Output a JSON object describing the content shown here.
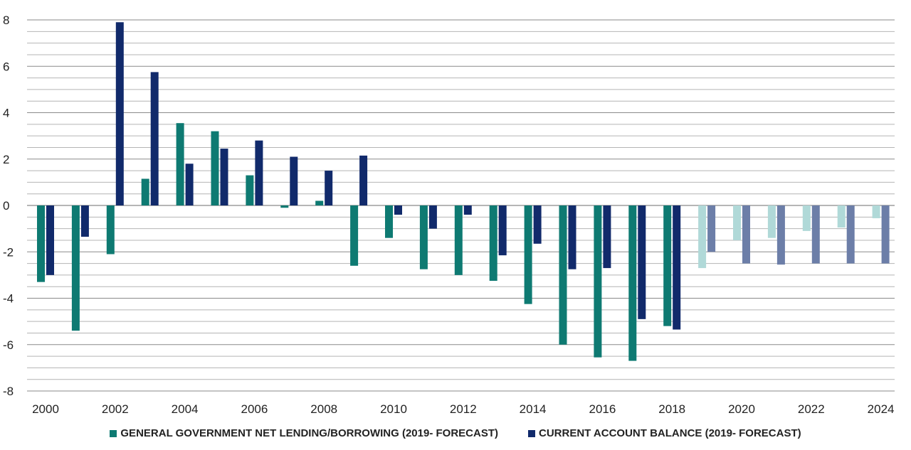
{
  "chart_data": {
    "type": "bar",
    "title": "",
    "xlabel": "",
    "ylabel": "",
    "ylim": [
      -8,
      8
    ],
    "y_ticks": [
      8,
      6,
      4,
      2,
      0,
      -2,
      -4,
      -6,
      -8
    ],
    "categories": [
      "2000",
      "2001",
      "2002",
      "2003",
      "2004",
      "2005",
      "2006",
      "2007",
      "2008",
      "2009",
      "2010",
      "2011",
      "2012",
      "2013",
      "2014",
      "2015",
      "2016",
      "2017",
      "2018",
      "2019",
      "2020",
      "2021",
      "2022",
      "2023",
      "2024"
    ],
    "x_tick_labels": [
      "2000",
      "2002",
      "2004",
      "2006",
      "2008",
      "2010",
      "2012",
      "2014",
      "2016",
      "2018",
      "2020",
      "2022",
      "2024"
    ],
    "forecast_from": "2019",
    "grid": true,
    "legend_position": "bottom",
    "series": [
      {
        "name": "GENERAL GOVERNMENT NET LENDING/BORROWING (2019- FORECAST)",
        "color": "#0e7a72",
        "forecast_color": "#b0d9d8",
        "values": [
          -3.3,
          -5.4,
          -2.1,
          1.15,
          3.55,
          3.2,
          1.3,
          -0.1,
          0.2,
          -2.6,
          -1.4,
          -2.75,
          -3.0,
          -3.25,
          -4.25,
          -6.0,
          -6.55,
          -6.7,
          -5.2,
          -2.7,
          -1.5,
          -1.4,
          -1.1,
          -0.95,
          -0.55
        ]
      },
      {
        "name": "CURRENT ACCOUNT BALANCE (2019- FORECAST)",
        "color": "#112a6b",
        "forecast_color": "#6c7ea8",
        "values": [
          -3.0,
          -1.35,
          7.9,
          5.75,
          1.8,
          2.45,
          2.8,
          2.1,
          1.5,
          2.15,
          -0.4,
          -1.0,
          -0.4,
          -2.15,
          -1.65,
          -2.75,
          -2.7,
          -4.9,
          -5.35,
          -2.0,
          -2.5,
          -2.55,
          -2.5,
          -2.5,
          -2.5
        ]
      }
    ]
  }
}
